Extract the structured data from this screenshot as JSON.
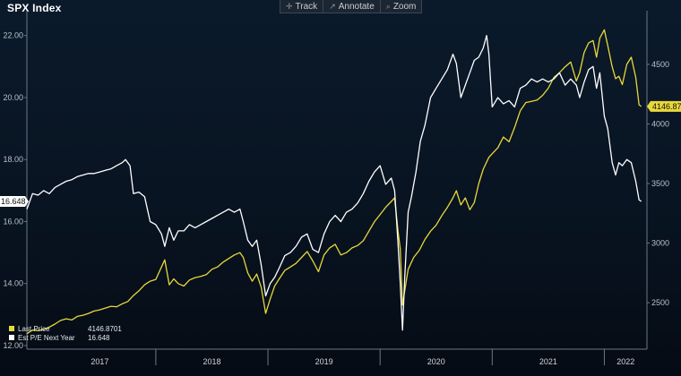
{
  "title": "SPX Index",
  "toolbar": [
    {
      "label": "Track",
      "icon": "crosshair-icon"
    },
    {
      "label": "Annotate",
      "icon": "annotate-icon"
    },
    {
      "label": "Zoom",
      "icon": "zoom-icon"
    }
  ],
  "chart_data": {
    "type": "line",
    "left_axis": {
      "ticks": [
        "12.00",
        "14.00",
        "16.00",
        "18.00",
        "20.00",
        "22.00"
      ],
      "range": [
        12,
        22.8
      ]
    },
    "right_axis": {
      "ticks": [
        "2500",
        "3000",
        "3500",
        "4000",
        "4500"
      ],
      "range": [
        2140,
        4950
      ]
    },
    "x_range": [
      2016.85,
      2022.38
    ],
    "x_ticks": [
      {
        "label": "2017",
        "mid": 2017.5
      },
      {
        "label": "2018",
        "mid": 2018.5
      },
      {
        "label": "2019",
        "mid": 2019.5
      },
      {
        "label": "2020",
        "mid": 2020.5
      },
      {
        "label": "2021",
        "mid": 2021.5
      },
      {
        "label": "2022",
        "mid": 2022.19
      }
    ],
    "x_separators": [
      2018.0,
      2019.0,
      2020.0,
      2021.0,
      2022.0
    ],
    "series": [
      {
        "name": "Last Price",
        "axis": "right",
        "color": "#e8d83a",
        "last_value_label": "4146.87",
        "legend_value": "4146.8701",
        "points": [
          [
            2016.85,
            2240
          ],
          [
            2016.9,
            2270
          ],
          [
            2016.95,
            2265
          ],
          [
            2017.0,
            2275
          ],
          [
            2017.05,
            2295
          ],
          [
            2017.1,
            2320
          ],
          [
            2017.15,
            2350
          ],
          [
            2017.2,
            2365
          ],
          [
            2017.25,
            2355
          ],
          [
            2017.3,
            2385
          ],
          [
            2017.35,
            2395
          ],
          [
            2017.4,
            2410
          ],
          [
            2017.45,
            2430
          ],
          [
            2017.5,
            2440
          ],
          [
            2017.55,
            2455
          ],
          [
            2017.6,
            2470
          ],
          [
            2017.65,
            2465
          ],
          [
            2017.7,
            2490
          ],
          [
            2017.75,
            2510
          ],
          [
            2017.8,
            2560
          ],
          [
            2017.85,
            2600
          ],
          [
            2017.9,
            2650
          ],
          [
            2017.95,
            2680
          ],
          [
            2018.0,
            2695
          ],
          [
            2018.05,
            2800
          ],
          [
            2018.08,
            2860
          ],
          [
            2018.12,
            2650
          ],
          [
            2018.16,
            2700
          ],
          [
            2018.2,
            2660
          ],
          [
            2018.25,
            2640
          ],
          [
            2018.3,
            2690
          ],
          [
            2018.35,
            2710
          ],
          [
            2018.4,
            2720
          ],
          [
            2018.45,
            2735
          ],
          [
            2018.5,
            2780
          ],
          [
            2018.55,
            2800
          ],
          [
            2018.6,
            2840
          ],
          [
            2018.65,
            2870
          ],
          [
            2018.7,
            2900
          ],
          [
            2018.75,
            2920
          ],
          [
            2018.78,
            2880
          ],
          [
            2018.82,
            2750
          ],
          [
            2018.86,
            2680
          ],
          [
            2018.9,
            2740
          ],
          [
            2018.94,
            2630
          ],
          [
            2018.98,
            2410
          ],
          [
            2019.02,
            2530
          ],
          [
            2019.06,
            2640
          ],
          [
            2019.1,
            2700
          ],
          [
            2019.15,
            2770
          ],
          [
            2019.2,
            2800
          ],
          [
            2019.25,
            2830
          ],
          [
            2019.3,
            2880
          ],
          [
            2019.35,
            2930
          ],
          [
            2019.4,
            2850
          ],
          [
            2019.45,
            2760
          ],
          [
            2019.5,
            2900
          ],
          [
            2019.55,
            2960
          ],
          [
            2019.6,
            2990
          ],
          [
            2019.65,
            2900
          ],
          [
            2019.7,
            2920
          ],
          [
            2019.75,
            2960
          ],
          [
            2019.8,
            2980
          ],
          [
            2019.85,
            3020
          ],
          [
            2019.9,
            3100
          ],
          [
            2019.95,
            3180
          ],
          [
            2020.0,
            3240
          ],
          [
            2020.05,
            3300
          ],
          [
            2020.1,
            3350
          ],
          [
            2020.13,
            3380
          ],
          [
            2020.16,
            3100
          ],
          [
            2020.18,
            2950
          ],
          [
            2020.2,
            2480
          ],
          [
            2020.22,
            2600
          ],
          [
            2020.25,
            2780
          ],
          [
            2020.3,
            2880
          ],
          [
            2020.35,
            2940
          ],
          [
            2020.4,
            3030
          ],
          [
            2020.45,
            3100
          ],
          [
            2020.5,
            3150
          ],
          [
            2020.55,
            3230
          ],
          [
            2020.6,
            3300
          ],
          [
            2020.65,
            3380
          ],
          [
            2020.68,
            3440
          ],
          [
            2020.72,
            3320
          ],
          [
            2020.76,
            3380
          ],
          [
            2020.8,
            3280
          ],
          [
            2020.84,
            3340
          ],
          [
            2020.88,
            3500
          ],
          [
            2020.92,
            3620
          ],
          [
            2020.97,
            3720
          ],
          [
            2021.0,
            3750
          ],
          [
            2021.05,
            3800
          ],
          [
            2021.1,
            3890
          ],
          [
            2021.15,
            3850
          ],
          [
            2021.2,
            3970
          ],
          [
            2021.25,
            4110
          ],
          [
            2021.3,
            4180
          ],
          [
            2021.35,
            4190
          ],
          [
            2021.4,
            4200
          ],
          [
            2021.45,
            4240
          ],
          [
            2021.5,
            4300
          ],
          [
            2021.55,
            4390
          ],
          [
            2021.6,
            4430
          ],
          [
            2021.65,
            4480
          ],
          [
            2021.7,
            4520
          ],
          [
            2021.75,
            4360
          ],
          [
            2021.78,
            4430
          ],
          [
            2021.82,
            4600
          ],
          [
            2021.86,
            4680
          ],
          [
            2021.9,
            4700
          ],
          [
            2021.93,
            4560
          ],
          [
            2021.96,
            4720
          ],
          [
            2022.0,
            4790
          ],
          [
            2022.03,
            4660
          ],
          [
            2022.07,
            4480
          ],
          [
            2022.1,
            4380
          ],
          [
            2022.13,
            4400
          ],
          [
            2022.16,
            4330
          ],
          [
            2022.2,
            4500
          ],
          [
            2022.24,
            4560
          ],
          [
            2022.28,
            4390
          ],
          [
            2022.31,
            4160
          ],
          [
            2022.33,
            4146.87
          ]
        ]
      },
      {
        "name": "Est P/E Next Year",
        "axis": "left",
        "color": "#ffffff",
        "last_value_label": "16.648",
        "legend_value": "16.648",
        "points": [
          [
            2016.85,
            16.4
          ],
          [
            2016.9,
            16.9
          ],
          [
            2016.95,
            16.85
          ],
          [
            2017.0,
            17.0
          ],
          [
            2017.05,
            16.9
          ],
          [
            2017.1,
            17.1
          ],
          [
            2017.15,
            17.2
          ],
          [
            2017.2,
            17.3
          ],
          [
            2017.25,
            17.35
          ],
          [
            2017.3,
            17.45
          ],
          [
            2017.35,
            17.5
          ],
          [
            2017.4,
            17.55
          ],
          [
            2017.45,
            17.55
          ],
          [
            2017.5,
            17.6
          ],
          [
            2017.55,
            17.65
          ],
          [
            2017.6,
            17.7
          ],
          [
            2017.65,
            17.8
          ],
          [
            2017.7,
            17.9
          ],
          [
            2017.73,
            18.0
          ],
          [
            2017.77,
            17.8
          ],
          [
            2017.8,
            16.9
          ],
          [
            2017.85,
            16.95
          ],
          [
            2017.9,
            16.8
          ],
          [
            2017.95,
            16.0
          ],
          [
            2018.0,
            15.9
          ],
          [
            2018.05,
            15.6
          ],
          [
            2018.08,
            15.2
          ],
          [
            2018.12,
            15.8
          ],
          [
            2018.16,
            15.4
          ],
          [
            2018.2,
            15.7
          ],
          [
            2018.25,
            15.7
          ],
          [
            2018.3,
            15.9
          ],
          [
            2018.35,
            15.8
          ],
          [
            2018.4,
            15.9
          ],
          [
            2018.45,
            16.0
          ],
          [
            2018.5,
            16.1
          ],
          [
            2018.55,
            16.2
          ],
          [
            2018.6,
            16.3
          ],
          [
            2018.65,
            16.4
          ],
          [
            2018.7,
            16.3
          ],
          [
            2018.75,
            16.4
          ],
          [
            2018.78,
            16.0
          ],
          [
            2018.82,
            15.4
          ],
          [
            2018.86,
            15.2
          ],
          [
            2018.9,
            15.4
          ],
          [
            2018.94,
            14.6
          ],
          [
            2018.98,
            13.6
          ],
          [
            2019.02,
            14.0
          ],
          [
            2019.06,
            14.2
          ],
          [
            2019.1,
            14.5
          ],
          [
            2019.15,
            14.9
          ],
          [
            2019.2,
            15.0
          ],
          [
            2019.25,
            15.2
          ],
          [
            2019.3,
            15.5
          ],
          [
            2019.35,
            15.6
          ],
          [
            2019.4,
            15.1
          ],
          [
            2019.45,
            15.0
          ],
          [
            2019.5,
            15.6
          ],
          [
            2019.55,
            16.0
          ],
          [
            2019.6,
            16.2
          ],
          [
            2019.65,
            16.0
          ],
          [
            2019.7,
            16.3
          ],
          [
            2019.75,
            16.4
          ],
          [
            2019.8,
            16.6
          ],
          [
            2019.85,
            16.9
          ],
          [
            2019.9,
            17.3
          ],
          [
            2019.95,
            17.6
          ],
          [
            2020.0,
            17.8
          ],
          [
            2020.05,
            17.2
          ],
          [
            2020.1,
            17.4
          ],
          [
            2020.13,
            17.0
          ],
          [
            2020.16,
            15.3
          ],
          [
            2020.18,
            14.0
          ],
          [
            2020.2,
            12.5
          ],
          [
            2020.22,
            14.2
          ],
          [
            2020.25,
            16.3
          ],
          [
            2020.28,
            16.8
          ],
          [
            2020.32,
            17.6
          ],
          [
            2020.36,
            18.6
          ],
          [
            2020.4,
            19.1
          ],
          [
            2020.45,
            20.0
          ],
          [
            2020.5,
            20.3
          ],
          [
            2020.55,
            20.6
          ],
          [
            2020.6,
            20.9
          ],
          [
            2020.65,
            21.4
          ],
          [
            2020.68,
            21.1
          ],
          [
            2020.72,
            20.0
          ],
          [
            2020.76,
            20.4
          ],
          [
            2020.8,
            20.8
          ],
          [
            2020.84,
            21.2
          ],
          [
            2020.88,
            21.3
          ],
          [
            2020.92,
            21.6
          ],
          [
            2020.95,
            22.0
          ],
          [
            2020.97,
            21.4
          ],
          [
            2021.0,
            19.7
          ],
          [
            2021.05,
            20.0
          ],
          [
            2021.1,
            19.8
          ],
          [
            2021.15,
            19.9
          ],
          [
            2021.2,
            19.7
          ],
          [
            2021.25,
            20.3
          ],
          [
            2021.3,
            20.4
          ],
          [
            2021.35,
            20.6
          ],
          [
            2021.4,
            20.5
          ],
          [
            2021.45,
            20.6
          ],
          [
            2021.5,
            20.5
          ],
          [
            2021.55,
            20.6
          ],
          [
            2021.6,
            20.8
          ],
          [
            2021.65,
            20.4
          ],
          [
            2021.7,
            20.6
          ],
          [
            2021.75,
            20.4
          ],
          [
            2021.78,
            20.0
          ],
          [
            2021.82,
            20.5
          ],
          [
            2021.86,
            20.9
          ],
          [
            2021.9,
            21.0
          ],
          [
            2021.93,
            20.3
          ],
          [
            2021.96,
            20.8
          ],
          [
            2022.0,
            19.4
          ],
          [
            2022.03,
            19.0
          ],
          [
            2022.07,
            17.9
          ],
          [
            2022.1,
            17.5
          ],
          [
            2022.13,
            17.9
          ],
          [
            2022.16,
            17.8
          ],
          [
            2022.2,
            18.0
          ],
          [
            2022.24,
            17.9
          ],
          [
            2022.28,
            17.3
          ],
          [
            2022.31,
            16.7
          ],
          [
            2022.33,
            16.648
          ]
        ]
      }
    ]
  }
}
